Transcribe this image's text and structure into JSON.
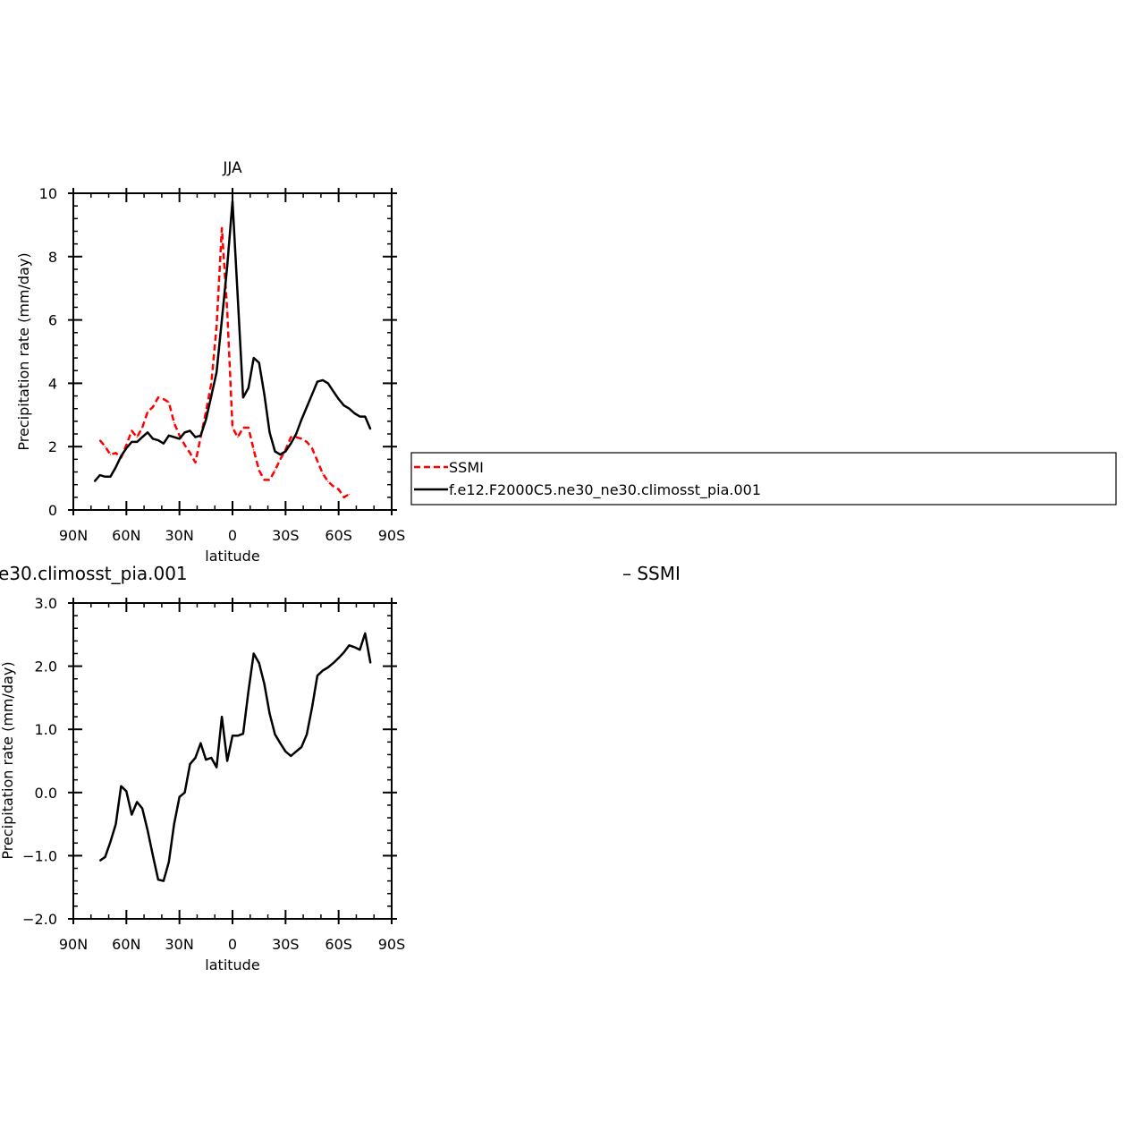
{
  "colors": {
    "model": "#000000",
    "obs": "#ff0000"
  },
  "legend": {
    "obs_label": "SSMI",
    "model_label": "f.e12.F2000C5.ne30_ne30.climosst_pia.001"
  },
  "chart_data": [
    {
      "type": "line",
      "title": "JJA",
      "xlabel": "latitude",
      "ylabel": "Precipitation rate (mm/day)",
      "xlim": [
        90,
        -90
      ],
      "ylim": [
        0,
        10
      ],
      "x_ticks": [
        {
          "v": 90,
          "label": "90N"
        },
        {
          "v": 60,
          "label": "60N"
        },
        {
          "v": 30,
          "label": "30N"
        },
        {
          "v": 0,
          "label": "0"
        },
        {
          "v": -30,
          "label": "30S"
        },
        {
          "v": -60,
          "label": "60S"
        },
        {
          "v": -90,
          "label": "90S"
        }
      ],
      "y_ticks": [
        {
          "v": 0,
          "label": "0"
        },
        {
          "v": 2,
          "label": "2"
        },
        {
          "v": 4,
          "label": "4"
        },
        {
          "v": 6,
          "label": "6"
        },
        {
          "v": 8,
          "label": "8"
        },
        {
          "v": 10,
          "label": "10"
        }
      ],
      "legend_position": "right",
      "series": [
        {
          "name": "SSMI",
          "color": "#ff0000",
          "dash": true,
          "points": [
            [
              75,
              2.2
            ],
            [
              72,
              2.0
            ],
            [
              69,
              1.75
            ],
            [
              66,
              1.8
            ],
            [
              63,
              1.65
            ],
            [
              60,
              2.05
            ],
            [
              57,
              2.5
            ],
            [
              54,
              2.3
            ],
            [
              51,
              2.6
            ],
            [
              48,
              3.1
            ],
            [
              45,
              3.25
            ],
            [
              42,
              3.55
            ],
            [
              39,
              3.5
            ],
            [
              36,
              3.4
            ],
            [
              33,
              2.75
            ],
            [
              30,
              2.35
            ],
            [
              27,
              2.05
            ],
            [
              24,
              1.8
            ],
            [
              21,
              1.5
            ],
            [
              18,
              2.3
            ],
            [
              15,
              3.1
            ],
            [
              12,
              4.0
            ],
            [
              9,
              5.8
            ],
            [
              6,
              8.9
            ],
            [
              3,
              6.3
            ],
            [
              0,
              2.6
            ],
            [
              -3,
              2.3
            ],
            [
              -6,
              2.6
            ],
            [
              -9,
              2.6
            ],
            [
              -12,
              1.9
            ],
            [
              -15,
              1.25
            ],
            [
              -18,
              0.95
            ],
            [
              -21,
              0.95
            ],
            [
              -24,
              1.25
            ],
            [
              -27,
              1.6
            ],
            [
              -30,
              1.9
            ],
            [
              -33,
              2.3
            ],
            [
              -36,
              2.3
            ],
            [
              -39,
              2.25
            ],
            [
              -42,
              2.15
            ],
            [
              -45,
              1.95
            ],
            [
              -48,
              1.55
            ],
            [
              -51,
              1.15
            ],
            [
              -54,
              0.9
            ],
            [
              -57,
              0.75
            ],
            [
              -60,
              0.65
            ],
            [
              -63,
              0.4
            ],
            [
              -66,
              0.5
            ]
          ]
        },
        {
          "name": "f.e12.F2000C5.ne30_ne30.climosst_pia.001",
          "color": "#000000",
          "dash": false,
          "points": [
            [
              78,
              0.9
            ],
            [
              75,
              1.1
            ],
            [
              72,
              1.05
            ],
            [
              69,
              1.05
            ],
            [
              66,
              1.35
            ],
            [
              63,
              1.7
            ],
            [
              60,
              1.95
            ],
            [
              57,
              2.15
            ],
            [
              54,
              2.15
            ],
            [
              51,
              2.3
            ],
            [
              48,
              2.45
            ],
            [
              45,
              2.25
            ],
            [
              42,
              2.2
            ],
            [
              39,
              2.1
            ],
            [
              36,
              2.35
            ],
            [
              33,
              2.3
            ],
            [
              30,
              2.25
            ],
            [
              27,
              2.45
            ],
            [
              24,
              2.5
            ],
            [
              21,
              2.3
            ],
            [
              18,
              2.35
            ],
            [
              15,
              2.85
            ],
            [
              12,
              3.6
            ],
            [
              9,
              4.35
            ],
            [
              6,
              6.0
            ],
            [
              3,
              7.7
            ],
            [
              0,
              9.75
            ],
            [
              -3,
              6.7
            ],
            [
              -6,
              3.55
            ],
            [
              -9,
              3.85
            ],
            [
              -12,
              4.8
            ],
            [
              -15,
              4.65
            ],
            [
              -18,
              3.65
            ],
            [
              -21,
              2.45
            ],
            [
              -24,
              1.85
            ],
            [
              -27,
              1.75
            ],
            [
              -30,
              1.85
            ],
            [
              -33,
              2.1
            ],
            [
              -36,
              2.4
            ],
            [
              -39,
              2.85
            ],
            [
              -42,
              3.25
            ],
            [
              -45,
              3.65
            ],
            [
              -48,
              4.05
            ],
            [
              -51,
              4.1
            ],
            [
              -54,
              4.0
            ],
            [
              -57,
              3.75
            ],
            [
              -60,
              3.5
            ],
            [
              -63,
              3.3
            ],
            [
              -66,
              3.2
            ],
            [
              -69,
              3.05
            ],
            [
              -72,
              2.95
            ],
            [
              -75,
              2.95
            ],
            [
              -78,
              2.55
            ]
          ]
        }
      ]
    },
    {
      "type": "line",
      "title_fragment": "e30.climosst_pia.001",
      "title_right_fragment": "– SSMI",
      "xlabel": "latitude",
      "ylabel_fragment": "Precipitation rate (mm/day)",
      "xlim": [
        90,
        -90
      ],
      "ylim": [
        -2.0,
        3.0
      ],
      "x_ticks": [
        {
          "v": 90,
          "label": "90N"
        },
        {
          "v": 60,
          "label": "60N"
        },
        {
          "v": 30,
          "label": "30N"
        },
        {
          "v": 0,
          "label": "0"
        },
        {
          "v": -30,
          "label": "30S"
        },
        {
          "v": -60,
          "label": "60S"
        },
        {
          "v": -90,
          "label": "90S"
        }
      ],
      "y_ticks": [
        {
          "v": -2,
          "label": "−2.0"
        },
        {
          "v": -1,
          "label": "−1.0"
        },
        {
          "v": 0,
          "label": "0.0"
        },
        {
          "v": 1,
          "label": "1.0"
        },
        {
          "v": 2,
          "label": "2.0"
        },
        {
          "v": 3,
          "label": "3.0"
        }
      ],
      "series": [
        {
          "color": "#000000",
          "dash": false,
          "points": [
            [
              75,
              -1.08
            ],
            [
              72,
              -1.02
            ],
            [
              69,
              -0.78
            ],
            [
              66,
              -0.5
            ],
            [
              63,
              0.1
            ],
            [
              60,
              0.02
            ],
            [
              57,
              -0.35
            ],
            [
              54,
              -0.15
            ],
            [
              51,
              -0.25
            ],
            [
              48,
              -0.6
            ],
            [
              45,
              -1.0
            ],
            [
              42,
              -1.38
            ],
            [
              39,
              -1.4
            ],
            [
              36,
              -1.1
            ],
            [
              33,
              -0.5
            ],
            [
              30,
              -0.07
            ],
            [
              27,
              0.0
            ],
            [
              24,
              0.45
            ],
            [
              21,
              0.55
            ],
            [
              18,
              0.78
            ],
            [
              15,
              0.52
            ],
            [
              12,
              0.55
            ],
            [
              9,
              0.4
            ],
            [
              6,
              1.2
            ],
            [
              3,
              0.5
            ],
            [
              0,
              0.9
            ],
            [
              -3,
              0.9
            ],
            [
              -6,
              0.93
            ],
            [
              -9,
              1.6
            ],
            [
              -12,
              2.2
            ],
            [
              -15,
              2.05
            ],
            [
              -18,
              1.72
            ],
            [
              -21,
              1.25
            ],
            [
              -24,
              0.92
            ],
            [
              -27,
              0.78
            ],
            [
              -30,
              0.65
            ],
            [
              -33,
              0.58
            ],
            [
              -36,
              0.65
            ],
            [
              -39,
              0.72
            ],
            [
              -42,
              0.92
            ],
            [
              -45,
              1.35
            ],
            [
              -48,
              1.85
            ],
            [
              -51,
              1.93
            ],
            [
              -54,
              1.98
            ],
            [
              -57,
              2.05
            ],
            [
              -60,
              2.13
            ],
            [
              -63,
              2.22
            ],
            [
              -66,
              2.33
            ],
            [
              -69,
              2.3
            ],
            [
              -72,
              2.26
            ],
            [
              -75,
              2.52
            ],
            [
              -78,
              2.05
            ]
          ]
        }
      ]
    }
  ]
}
